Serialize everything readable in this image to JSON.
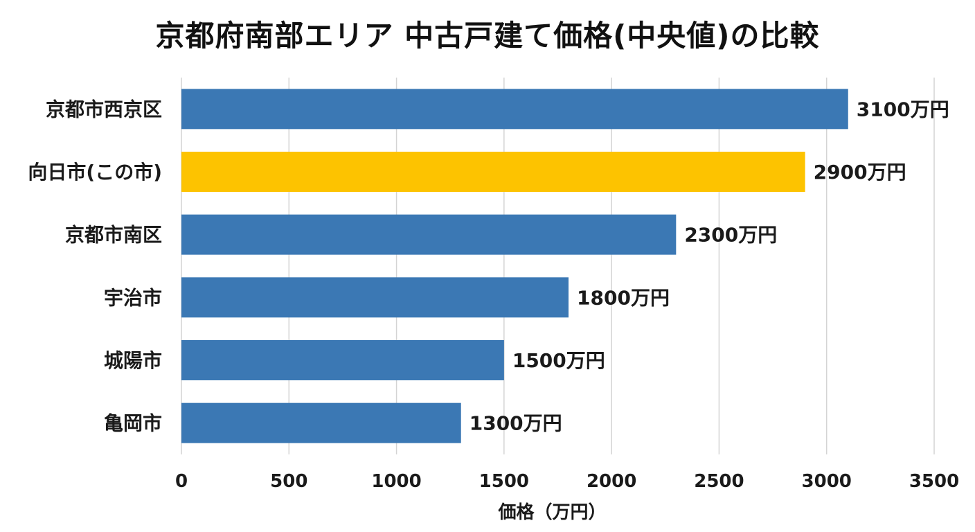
{
  "chart_data": {
    "type": "bar",
    "orientation": "horizontal",
    "title": "京都府南部エリア 中古戸建て価格(中央値)の比較",
    "xlabel": "価格（万円）",
    "ylabel": "",
    "xlim": [
      0,
      3500
    ],
    "x_ticks": [
      0,
      500,
      1000,
      1500,
      2000,
      2500,
      3000,
      3500
    ],
    "grid": "vertical",
    "legend": "none",
    "value_suffix": "万円",
    "categories": [
      "京都市西京区",
      "向日市(この市)",
      "京都市南区",
      "宇治市",
      "城陽市",
      "亀岡市"
    ],
    "values": [
      3100,
      2900,
      2300,
      1800,
      1500,
      1300
    ],
    "bar_colors": [
      "#3b78b4",
      "#fdc300",
      "#3b78b4",
      "#3b78b4",
      "#3b78b4",
      "#3b78b4"
    ]
  }
}
